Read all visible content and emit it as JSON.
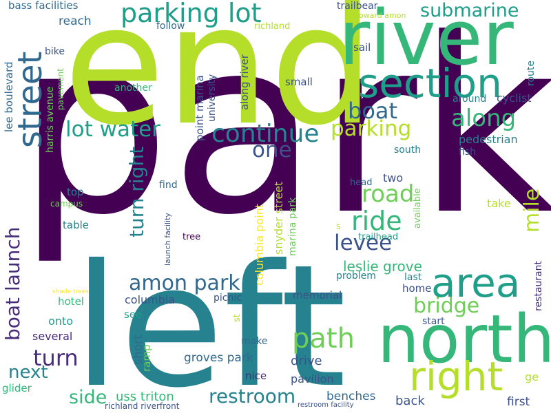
{
  "word_cloud": {
    "palette": {
      "dark_purple": "#440154",
      "indigo": "#472c7a",
      "slate_blue": "#3b528b",
      "steel_blue": "#31688e",
      "teal_blue": "#26828e",
      "teal": "#1f9e89",
      "sea_green": "#35b779",
      "green": "#6ece58",
      "lime": "#b5de2b",
      "yellow": "#fde725"
    },
    "words": [
      {
        "text": "park",
        "color": "#440154"
      },
      {
        "text": "end",
        "color": "#b5de2b"
      },
      {
        "text": "left",
        "color": "#26828e"
      },
      {
        "text": "river",
        "color": "#35b779"
      },
      {
        "text": "north",
        "color": "#35b779"
      },
      {
        "text": "street",
        "color": "#31688e"
      },
      {
        "text": "section",
        "color": "#1f9e89"
      },
      {
        "text": "area",
        "color": "#1f9e89"
      },
      {
        "text": "parking lot",
        "color": "#1f9e89"
      },
      {
        "text": "right",
        "color": "#b5de2b"
      },
      {
        "text": "path",
        "color": "#6ece58"
      },
      {
        "text": "submarine",
        "color": "#1f9e89"
      },
      {
        "text": "continue",
        "color": "#26828e"
      },
      {
        "text": "parking",
        "color": "#b5de2b"
      },
      {
        "text": "boat",
        "color": "#31688e"
      },
      {
        "text": "along",
        "color": "#35b779"
      },
      {
        "text": "lot water",
        "color": "#1f9e89"
      },
      {
        "text": "one",
        "color": "#3b528b"
      },
      {
        "text": "road",
        "color": "#6ece58"
      },
      {
        "text": "ride",
        "color": "#35b779"
      },
      {
        "text": "levee",
        "color": "#3b528b"
      },
      {
        "text": "mile",
        "color": "#b5de2b"
      },
      {
        "text": "amon park",
        "color": "#31688e"
      },
      {
        "text": "bridge",
        "color": "#6ece58"
      },
      {
        "text": "boat launch",
        "color": "#472c7a"
      },
      {
        "text": "turn right",
        "color": "#26828e"
      },
      {
        "text": "turn",
        "color": "#472c7a"
      },
      {
        "text": "next",
        "color": "#26828e"
      },
      {
        "text": "side",
        "color": "#35b779"
      },
      {
        "text": "restroom",
        "color": "#26828e"
      },
      {
        "text": "leslie grove",
        "color": "#35b779"
      },
      {
        "text": "uss triton",
        "color": "#35b779"
      },
      {
        "text": "groves park",
        "color": "#31688e"
      },
      {
        "text": "drive",
        "color": "#3b528b"
      },
      {
        "text": "pavilion",
        "color": "#3b528b"
      },
      {
        "text": "benches",
        "color": "#31688e"
      },
      {
        "text": "back",
        "color": "#3b528b"
      },
      {
        "text": "first",
        "color": "#3b528b"
      },
      {
        "text": "ge",
        "color": "#b5de2b"
      },
      {
        "text": "nice",
        "color": "#472c7a"
      },
      {
        "text": "make",
        "color": "#31688e"
      },
      {
        "text": "picnic",
        "color": "#3b528b"
      },
      {
        "text": "memorial",
        "color": "#3b528b"
      },
      {
        "text": "columbia",
        "color": "#3b528b"
      },
      {
        "text": "hotel",
        "color": "#35b779"
      },
      {
        "text": "onto",
        "color": "#1f9e89"
      },
      {
        "text": "several",
        "color": "#472c7a"
      },
      {
        "text": "see",
        "color": "#1f9e89"
      },
      {
        "text": "short",
        "color": "#31688e"
      },
      {
        "text": "ramp",
        "color": "#6ece58"
      },
      {
        "text": "glider",
        "color": "#35b779"
      },
      {
        "text": "richland riverfront",
        "color": "#3b528b"
      },
      {
        "text": "restroom facility",
        "color": "#3b528b"
      },
      {
        "text": "shade trees",
        "color": "#fde725"
      },
      {
        "text": "st",
        "color": "#b5de2b"
      },
      {
        "text": "problem",
        "color": "#26828e"
      },
      {
        "text": "home",
        "color": "#3b528b"
      },
      {
        "text": "last",
        "color": "#26828e"
      },
      {
        "text": "start",
        "color": "#3b528b"
      },
      {
        "text": "restaurant",
        "color": "#472c7a"
      },
      {
        "text": "trailhead",
        "color": "#1f9e89"
      },
      {
        "text": "s",
        "color": "#b5de2b"
      },
      {
        "text": "take",
        "color": "#b5de2b"
      },
      {
        "text": "available",
        "color": "#6ece58"
      },
      {
        "text": "head",
        "color": "#31688e"
      },
      {
        "text": "two",
        "color": "#3b528b"
      },
      {
        "text": "south",
        "color": "#26828e"
      },
      {
        "text": "fish",
        "color": "#3b528b"
      },
      {
        "text": "pedestrian",
        "color": "#26828e"
      },
      {
        "text": "around",
        "color": "#26828e"
      },
      {
        "text": "cyclist",
        "color": "#3b528b"
      },
      {
        "text": "route",
        "color": "#26828e"
      },
      {
        "text": "sail",
        "color": "#3b528b"
      },
      {
        "text": "small",
        "color": "#3b528b"
      },
      {
        "text": "trailbear",
        "color": "#3b528b"
      },
      {
        "text": "howard amon",
        "color": "#b5de2b"
      },
      {
        "text": "richland",
        "color": "#b5de2b"
      },
      {
        "text": "follow",
        "color": "#31688e"
      },
      {
        "text": "reach",
        "color": "#31688e"
      },
      {
        "text": "bass facilities",
        "color": "#31688e"
      },
      {
        "text": "bike",
        "color": "#3b528b"
      },
      {
        "text": "another",
        "color": "#35b779"
      },
      {
        "text": "lee boulevard",
        "color": "#31688e"
      },
      {
        "text": "harris avenue",
        "color": "#6ece58"
      },
      {
        "text": "pavement",
        "color": "#6ece58"
      },
      {
        "text": "university",
        "color": "#3b528b"
      },
      {
        "text": "point marina",
        "color": "#3b528b"
      },
      {
        "text": "along river",
        "color": "#3b528b"
      },
      {
        "text": "top",
        "color": "#26828e"
      },
      {
        "text": "campus",
        "color": "#6ece58"
      },
      {
        "text": "table",
        "color": "#26828e"
      },
      {
        "text": "find",
        "color": "#31688e"
      },
      {
        "text": "tree",
        "color": "#440154"
      },
      {
        "text": "launch facility",
        "color": "#3b528b"
      },
      {
        "text": "columbia point",
        "color": "#fde725"
      },
      {
        "text": "snyder street",
        "color": "#b5de2b"
      },
      {
        "text": "marina park",
        "color": "#6ece58"
      }
    ]
  }
}
